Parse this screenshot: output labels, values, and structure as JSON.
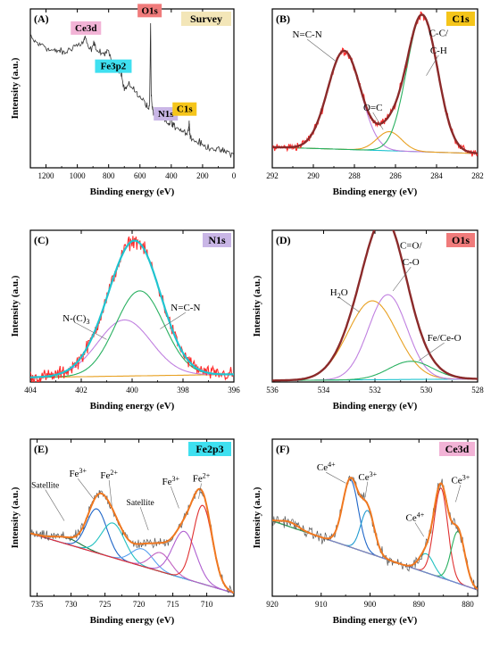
{
  "chart_data": [
    {
      "id": "A",
      "type": "line",
      "panel_label": "(A)",
      "badge": "Survey",
      "badge_color": "#f3e6b8",
      "xlabel": "Binding energy (eV)",
      "ylabel": "Intensity (a.u.)",
      "xlim": [
        1300,
        0
      ],
      "ylim": [
        0,
        100
      ],
      "xticks": [
        1200,
        1000,
        800,
        600,
        400,
        200,
        0
      ],
      "xtick_labels": [
        "1200",
        "1000",
        "800",
        "600",
        "400",
        "200",
        "0"
      ],
      "series": [
        {
          "color": "#333333",
          "width": 0.8,
          "noise": 2.2,
          "x": [
            1300,
            1280,
            1260,
            1240,
            1220,
            1200,
            1180,
            1160,
            1140,
            1120,
            1100,
            1080,
            1060,
            1040,
            1020,
            1000,
            980,
            960,
            950,
            940,
            920,
            900,
            890,
            880,
            860,
            840,
            820,
            800,
            780,
            760,
            740,
            725,
            715,
            705,
            700,
            690,
            680,
            660,
            640,
            620,
            600,
            580,
            560,
            545,
            538,
            532,
            528,
            522,
            518,
            510,
            500,
            480,
            460,
            440,
            420,
            410,
            402,
            398,
            394,
            390,
            380,
            360,
            340,
            320,
            300,
            290,
            286,
            284,
            282,
            278,
            270,
            250,
            220,
            200,
            170,
            150,
            120,
            100,
            80,
            60,
            40,
            20,
            0
          ],
          "y": [
            82,
            80,
            79,
            77,
            78,
            76,
            74,
            74,
            73,
            74,
            73,
            72,
            74,
            75,
            77,
            77,
            78,
            79,
            83,
            78,
            74,
            76,
            80,
            74,
            73,
            71,
            73,
            72,
            68,
            64,
            62,
            62,
            58,
            52,
            50,
            50,
            51,
            52,
            50,
            46,
            44,
            44,
            40,
            36,
            42,
            91,
            46,
            38,
            36,
            34,
            33,
            32,
            32,
            29,
            27,
            28,
            31,
            30,
            28,
            26,
            26,
            26,
            24,
            23,
            22,
            24,
            28,
            28,
            22,
            20,
            18,
            17,
            16,
            14,
            13,
            13,
            12,
            11,
            11,
            10,
            10,
            9,
            8
          ]
        }
      ],
      "annotations": [
        {
          "text": "Ce3d",
          "x": 945,
          "y": 86,
          "box": "#f2b3d6"
        },
        {
          "text": "Fe3p2",
          "x": 770,
          "y": 62,
          "box": "#3fe0f0"
        },
        {
          "text": "O1s",
          "x": 538,
          "y": 97,
          "box": "#f07b7b"
        },
        {
          "text": "N1s",
          "x": 435,
          "y": 32,
          "box": "#c9b6e6"
        },
        {
          "text": "C1s",
          "x": 315,
          "y": 35,
          "box": "#f5c51a"
        }
      ]
    },
    {
      "id": "B",
      "type": "line",
      "panel_label": "(B)",
      "badge": "C1s",
      "badge_color": "#f5c51a",
      "xlabel": "Binding energy (eV)",
      "ylabel": "",
      "xlim": [
        292,
        282
      ],
      "ylim": [
        0,
        100
      ],
      "xticks": [
        292,
        290,
        288,
        286,
        284,
        282
      ],
      "xtick_labels": [
        "292",
        "290",
        "288",
        "286",
        "284",
        "282"
      ],
      "series": [
        {
          "name": "background",
          "color": "#1fc4d0",
          "fn": "linear",
          "from": 13,
          "to": 9
        },
        {
          "name": "N=C-N",
          "color": "#c080e0",
          "fn": "gauss",
          "center": 288.5,
          "height": 62,
          "sigma": 0.8
        },
        {
          "name": "O=C",
          "color": "#e8a020",
          "fn": "gauss",
          "center": 286.3,
          "height": 12,
          "sigma": 0.6
        },
        {
          "name": "C-C/C-H",
          "color": "#28b060",
          "fn": "gauss",
          "center": 284.7,
          "height": 86,
          "sigma": 0.75
        },
        {
          "name": "raw",
          "color": "#ff2a2a",
          "fn": "envelope",
          "noise": 2.6
        },
        {
          "name": "fit",
          "color": "#8b2a2a",
          "fn": "envelope",
          "width": 2.4
        }
      ],
      "annotations": [
        {
          "text": "N=C-N",
          "x": 290.3,
          "y": 82,
          "leader": [
            288.9,
            67
          ]
        },
        {
          "text": "O=C",
          "x": 287.1,
          "y": 36,
          "leader": [
            286.6,
            24
          ]
        },
        {
          "text": "C-C/",
          "x": 283.9,
          "y": 83
        },
        {
          "text": "C-H",
          "x": 283.9,
          "y": 72,
          "leader": [
            284.5,
            58
          ]
        }
      ]
    },
    {
      "id": "C",
      "type": "line",
      "panel_label": "(C)",
      "badge": "N1s",
      "badge_color": "#c9b6e6",
      "xlabel": "Binding energy (eV)",
      "ylabel": "Intensity (a.u.)",
      "xlim": [
        404,
        396
      ],
      "ylim": [
        0,
        100
      ],
      "xticks": [
        404,
        402,
        400,
        398,
        396
      ],
      "xtick_labels": [
        "404",
        "402",
        "400",
        "398",
        "396"
      ],
      "series": [
        {
          "name": "background",
          "color": "#e8a020",
          "fn": "linear",
          "from": 3,
          "to": 5
        },
        {
          "name": "N-(C)3",
          "color": "#c080e0",
          "fn": "gauss",
          "center": 400.3,
          "height": 37,
          "sigma": 1.05
        },
        {
          "name": "N=C-N",
          "color": "#28b060",
          "fn": "gauss",
          "center": 399.7,
          "height": 56,
          "sigma": 0.95
        },
        {
          "name": "raw",
          "color": "#ff2a2a",
          "fn": "envelope",
          "noise": 4.5
        },
        {
          "name": "fit",
          "color": "#1fc4d0",
          "fn": "envelope",
          "width": 2.2
        }
      ],
      "annotations": [
        {
          "text": "N-(C)",
          "sub": "3",
          "x": 402.2,
          "y": 40,
          "leader": [
            401.0,
            28
          ]
        },
        {
          "text": "N=C-N",
          "x": 397.9,
          "y": 47,
          "leader": [
            398.9,
            35
          ]
        }
      ]
    },
    {
      "id": "D",
      "type": "line",
      "panel_label": "(D)",
      "badge": "O1s",
      "badge_color": "#f07b7b",
      "xlabel": "Binding energy (eV)",
      "ylabel": "Intensity (a.u.)",
      "xlim": [
        536,
        528
      ],
      "ylim": [
        0,
        100
      ],
      "xticks": [
        536,
        534,
        532,
        530,
        528
      ],
      "xtick_labels": [
        "536",
        "534",
        "532",
        "530",
        "528"
      ],
      "series": [
        {
          "name": "background",
          "color": "#1fc4d0",
          "fn": "linear",
          "from": 1,
          "to": 2
        },
        {
          "name": "H2O",
          "color": "#e8a020",
          "fn": "gauss",
          "center": 532.1,
          "height": 52,
          "sigma": 0.95
        },
        {
          "name": "C=O/C-O",
          "color": "#c080e0",
          "fn": "gauss",
          "center": 531.5,
          "height": 56,
          "sigma": 0.75
        },
        {
          "name": "Fe/Ce-O",
          "color": "#28b060",
          "fn": "gauss",
          "center": 530.6,
          "height": 12,
          "sigma": 0.85
        },
        {
          "name": "fit",
          "color": "#8b2a2a",
          "fn": "envelope",
          "width": 2.4
        }
      ],
      "annotations": [
        {
          "text": "H",
          "sub": "2",
          "tail": "O",
          "x": 533.4,
          "y": 57,
          "leader": [
            532.6,
            46
          ]
        },
        {
          "text": "C=O/",
          "x": 530.6,
          "y": 88
        },
        {
          "text": "C-O",
          "x": 530.6,
          "y": 77,
          "leader": [
            531.3,
            60
          ]
        },
        {
          "text": "Fe/Ce-O",
          "x": 529.3,
          "y": 27,
          "leader": [
            530.3,
            14
          ]
        }
      ]
    },
    {
      "id": "E",
      "type": "line",
      "panel_label": "(E)",
      "badge": "Fe2p3",
      "badge_color": "#3fe0f0",
      "xlabel": "Binding energy (eV)",
      "ylabel": "Intensity (a.u.)",
      "xlim": [
        736,
        706
      ],
      "ylim": [
        0,
        100
      ],
      "xticks": [
        735,
        730,
        725,
        720,
        715,
        710
      ],
      "xtick_labels": [
        "735",
        "730",
        "725",
        "720",
        "715",
        "710"
      ],
      "series": [
        {
          "name": "background",
          "color": "#9a8a1e",
          "fn": "linear",
          "from": 40,
          "to": 2
        },
        {
          "name": "Satellite",
          "color": "#1a7a40",
          "fn": "gauss",
          "center": 730.5,
          "height": 4,
          "sigma": 2.0
        },
        {
          "name": "Fe3+ (2p1/2)",
          "color": "#1f66c8",
          "fn": "gauss",
          "center": 726.2,
          "height": 28,
          "sigma": 1.5
        },
        {
          "name": "Fe2+ (2p1/2)",
          "color": "#20c0c0",
          "fn": "gauss",
          "center": 723.8,
          "height": 22,
          "sigma": 1.7
        },
        {
          "name": "Satellite",
          "color": "#5aa0f0",
          "fn": "gauss",
          "center": 719.5,
          "height": 11,
          "sigma": 1.6
        },
        {
          "name": "Satellite",
          "color": "#c060c0",
          "fn": "gauss",
          "center": 716.8,
          "height": 12,
          "sigma": 1.5
        },
        {
          "name": "Fe3+ (2p3/2)",
          "color": "#b060d0",
          "fn": "gauss",
          "center": 713.3,
          "height": 30,
          "sigma": 1.7
        },
        {
          "name": "Fe2+ (2p3/2)",
          "color": "#e03030",
          "fn": "gauss",
          "center": 710.6,
          "height": 50,
          "sigma": 1.4
        },
        {
          "name": "raw",
          "color": "#555555",
          "fn": "envelope",
          "noise": 3.2,
          "width": 0.7
        },
        {
          "name": "fit",
          "color": "#f07820",
          "fn": "envelope",
          "width": 2.0
        }
      ],
      "annotations": [
        {
          "text": "Satellite",
          "x": 733.8,
          "y": 69,
          "small": true,
          "leader": [
            731.0,
            48
          ]
        },
        {
          "text": "Fe",
          "sup": "3+",
          "x": 729.0,
          "y": 76,
          "leader": [
            726.7,
            62
          ]
        },
        {
          "text": "Fe",
          "sup": "2+",
          "x": 724.4,
          "y": 75,
          "leader": [
            724.0,
            58
          ]
        },
        {
          "text": "Satellite",
          "x": 719.8,
          "y": 58,
          "small": true,
          "leader": [
            718.6,
            42
          ]
        },
        {
          "text": "Fe",
          "sup": "3+",
          "x": 715.3,
          "y": 71,
          "leader": [
            714.1,
            56
          ]
        },
        {
          "text": "Fe",
          "sup": "2+",
          "x": 710.8,
          "y": 73,
          "leader": [
            711.2,
            62
          ]
        }
      ]
    },
    {
      "id": "F",
      "type": "line",
      "panel_label": "(F)",
      "badge": "Ce3d",
      "badge_color": "#f2b3d6",
      "xlabel": "Binding energy (eV)",
      "ylabel": "Intensity (a.u.)",
      "xlim": [
        920,
        878
      ],
      "ylim": [
        0,
        100
      ],
      "xticks": [
        920,
        910,
        900,
        890,
        880
      ],
      "xtick_labels": [
        "920",
        "910",
        "900",
        "890",
        "880"
      ],
      "series": [
        {
          "name": "background",
          "color": "#9a8a1e",
          "fn": "linear",
          "from": 48,
          "to": 4
        },
        {
          "name": "Ce4+ (3d3/2)",
          "color": "#1f66c8",
          "fn": "gauss",
          "center": 904.0,
          "height": 43,
          "sigma": 1.6
        },
        {
          "name": "Ce3+ (3d3/2)",
          "color": "#1f9ad0",
          "fn": "gauss",
          "center": 900.5,
          "height": 27,
          "sigma": 1.4
        },
        {
          "name": "Ce4+ (3d5/2)",
          "color": "#20c0c0",
          "fn": "gauss",
          "center": 888.5,
          "height": 12,
          "sigma": 1.5
        },
        {
          "name": "Ce4+ (3d5/2)",
          "color": "#e03030",
          "fn": "gauss",
          "center": 885.5,
          "height": 57,
          "sigma": 1.4
        },
        {
          "name": "Ce3+ (3d5/2)",
          "color": "#28b060",
          "fn": "gauss",
          "center": 882.0,
          "height": 33,
          "sigma": 1.4
        },
        {
          "name": "Satellite",
          "color": "#8080d0",
          "fn": "gauss",
          "center": 916.5,
          "height": 3,
          "sigma": 1.8
        },
        {
          "name": "raw",
          "color": "#555555",
          "fn": "envelope",
          "noise": 3.6,
          "width": 0.7
        },
        {
          "name": "fit",
          "color": "#f07820",
          "fn": "envelope",
          "width": 2.0
        }
      ],
      "annotations": [
        {
          "text": "Ce",
          "sup": "4+",
          "x": 909.0,
          "y": 80,
          "leader": [
            905.0,
            72
          ]
        },
        {
          "text": "Ce",
          "sup": "3+",
          "x": 900.5,
          "y": 74,
          "leader": [
            901.0,
            63
          ]
        },
        {
          "text": "Ce",
          "sup": "4+",
          "x": 890.8,
          "y": 48,
          "leader": [
            889.0,
            38
          ]
        },
        {
          "text": "Ce",
          "sup": "3+",
          "x": 881.5,
          "y": 72,
          "leader": [
            882.5,
            60
          ]
        }
      ]
    }
  ]
}
